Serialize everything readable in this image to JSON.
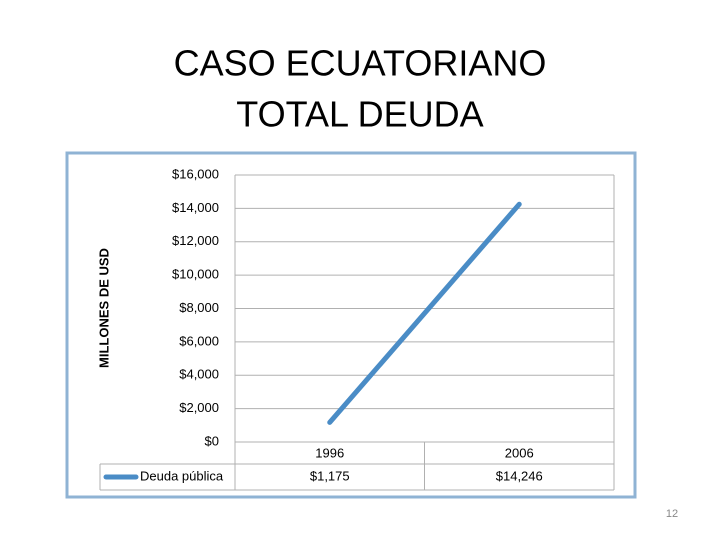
{
  "chart_data": {
    "type": "line",
    "title": [
      "CASO ECUATORIANO",
      "TOTAL DEUDA"
    ],
    "y_label": "MILLONES DE USD",
    "categories": [
      "1996",
      "2006"
    ],
    "series": [
      {
        "name": "Deuda pública",
        "color": "#4a8cc6",
        "values": [
          1175,
          14246
        ],
        "value_labels": [
          "$1,175",
          "$14,246"
        ]
      }
    ],
    "ylim": [
      0,
      16000
    ],
    "yticks": [
      {
        "value": 0,
        "label": "$0"
      },
      {
        "value": 2000,
        "label": "$2,000"
      },
      {
        "value": 4000,
        "label": "$4,000"
      },
      {
        "value": 6000,
        "label": "$6,000"
      },
      {
        "value": 8000,
        "label": "$8,000"
      },
      {
        "value": 10000,
        "label": "$10,000"
      },
      {
        "value": 12000,
        "label": "$12,000"
      },
      {
        "value": 14000,
        "label": "$14,000"
      },
      {
        "value": 16000,
        "label": "$16,000"
      }
    ],
    "grid": true
  },
  "slide_number": "12"
}
